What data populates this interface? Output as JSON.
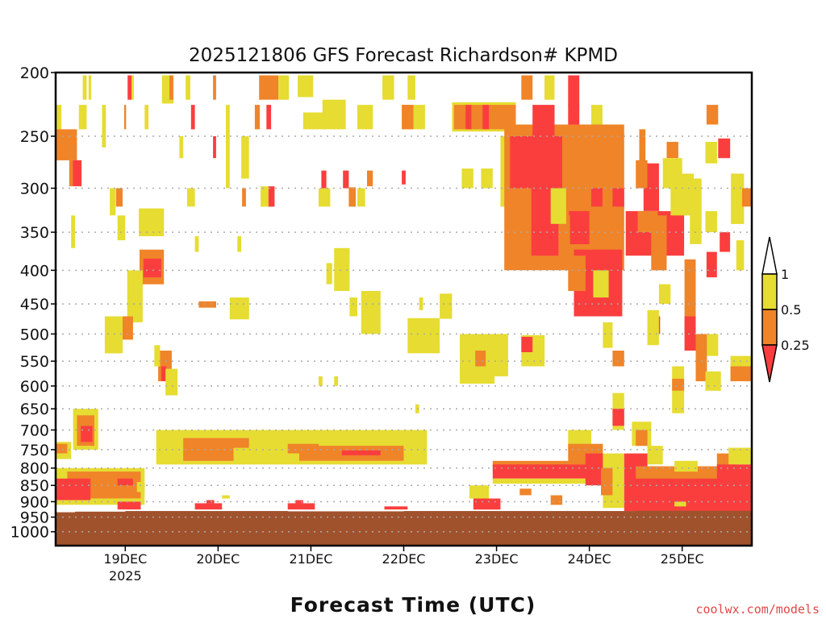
{
  "chart_data": {
    "type": "heatmap",
    "title": "2025121806 GFS Forecast Richardson# KPMD",
    "xlabel": "Forecast Time (UTC)",
    "ylabel": "",
    "credit": "coolwx.com/models",
    "x_units": "hours since 18DEC2025 06Z",
    "xlim": [
      0,
      180
    ],
    "ylim": [
      1050,
      200
    ],
    "y_scale": "log",
    "y_ticks": [
      200,
      250,
      300,
      350,
      400,
      450,
      500,
      550,
      600,
      650,
      700,
      750,
      800,
      850,
      900,
      950,
      1000
    ],
    "y_tick_labels": [
      "200",
      "250",
      "300",
      "350",
      "400",
      "450",
      "500",
      "550",
      "600",
      "650",
      "700",
      "750",
      "800",
      "850",
      "900",
      "950",
      "1000"
    ],
    "x_ticks": [
      {
        "hour": 18,
        "label": "19DEC",
        "sublabel": "2025"
      },
      {
        "hour": 42,
        "label": "20DEC"
      },
      {
        "hour": 66,
        "label": "21DEC"
      },
      {
        "hour": 90,
        "label": "22DEC"
      },
      {
        "hour": 114,
        "label": "23DEC"
      },
      {
        "hour": 138,
        "label": "24DEC"
      },
      {
        "hour": 162,
        "label": "25DEC"
      }
    ],
    "grid": "dotted horizontal at pressure ticks",
    "legend": {
      "placement": "right",
      "categories": [
        {
          "label": "< 0.25",
          "color": "#fa3e3e"
        },
        {
          "label": "0.25 - 0.5",
          "color": "#ef8429"
        },
        {
          "label": "0.5 - 1",
          "color": "#e6dc32"
        },
        {
          "label": "> 1",
          "color": "#ffffff"
        }
      ],
      "tick_labels": [
        "1",
        "0.5",
        "0.25"
      ]
    },
    "colors": {
      "red": "#fa3e3e",
      "orange": "#ef8429",
      "yellow": "#e6dc32",
      "ground": "#a0522d"
    },
    "surface_pressure": [
      [
        0,
        934
      ],
      [
        5,
        932
      ],
      [
        18,
        930
      ],
      [
        36,
        930
      ],
      [
        60,
        931
      ],
      [
        90,
        930
      ],
      [
        114,
        930
      ],
      [
        150,
        929
      ],
      [
        180,
        929
      ]
    ],
    "cells_format": "[hour_start, hour_end, p_top, p_bottom, category(0=red<0.25,1=orange,2=yellow)]",
    "cells": [
      [
        7,
        8,
        202,
        220,
        2
      ],
      [
        8.5,
        9.2,
        202,
        220,
        2
      ],
      [
        18.6,
        19.6,
        202,
        220,
        0
      ],
      [
        19.6,
        20.2,
        202,
        220,
        2
      ],
      [
        27.5,
        30.5,
        202,
        223,
        2
      ],
      [
        29.4,
        30.4,
        202,
        220,
        1
      ],
      [
        33.6,
        34.8,
        202,
        220,
        2
      ],
      [
        40.7,
        41.5,
        202,
        220,
        1
      ],
      [
        52.6,
        57.6,
        202,
        220,
        1
      ],
      [
        57.6,
        60.3,
        202,
        220,
        2
      ],
      [
        62.6,
        66.6,
        202,
        218,
        2
      ],
      [
        69,
        75,
        220,
        244,
        2
      ],
      [
        84.5,
        87.5,
        202,
        220,
        2
      ],
      [
        91,
        93,
        202,
        220,
        2
      ],
      [
        89.5,
        95.5,
        224,
        244,
        2
      ],
      [
        89.5,
        92.5,
        224,
        244,
        1
      ],
      [
        0,
        1.5,
        224,
        244,
        2
      ],
      [
        6,
        8,
        224,
        244,
        2
      ],
      [
        12,
        13,
        224,
        260,
        2
      ],
      [
        23,
        24,
        224,
        244,
        2
      ],
      [
        44,
        45,
        224,
        300,
        2
      ],
      [
        0,
        5.5,
        244,
        272,
        1
      ],
      [
        4.4,
        6.7,
        272,
        298,
        0
      ],
      [
        3.5,
        4.4,
        272,
        298,
        1
      ],
      [
        35,
        36,
        224,
        244,
        0
      ],
      [
        51.5,
        52.8,
        224,
        244,
        1
      ],
      [
        54.5,
        55.7,
        224,
        244,
        0
      ],
      [
        17.7,
        18.2,
        224,
        244,
        1
      ],
      [
        40.7,
        41.5,
        250,
        270,
        0
      ],
      [
        32,
        33,
        250,
        270,
        2
      ],
      [
        48,
        50,
        250,
        290,
        2
      ],
      [
        64,
        70,
        230,
        244,
        2
      ],
      [
        78,
        82,
        224,
        244,
        2
      ],
      [
        55,
        56.6,
        298,
        320,
        0
      ],
      [
        53,
        55,
        298,
        320,
        2
      ],
      [
        68.7,
        70,
        282,
        300,
        0
      ],
      [
        74.3,
        75.8,
        282,
        300,
        0
      ],
      [
        80.5,
        82,
        282,
        298,
        1
      ],
      [
        89.5,
        90.5,
        282,
        296,
        0
      ],
      [
        75.8,
        77.6,
        299,
        320,
        1
      ],
      [
        48.2,
        49.2,
        300,
        320,
        1
      ],
      [
        15.6,
        17.3,
        300,
        320,
        1
      ],
      [
        14,
        15.5,
        300,
        330,
        2
      ],
      [
        34,
        36,
        300,
        320,
        2
      ],
      [
        68,
        71,
        300,
        320,
        2
      ],
      [
        78,
        80,
        300,
        320,
        2
      ],
      [
        22,
        27.5,
        325,
        350,
        1
      ],
      [
        21.5,
        28,
        322,
        355,
        2
      ],
      [
        16,
        18,
        330,
        360,
        2
      ],
      [
        4,
        5,
        330,
        370,
        2
      ],
      [
        21.7,
        28,
        372,
        420,
        1
      ],
      [
        22.7,
        27.3,
        384,
        410,
        0
      ],
      [
        36,
        37,
        355,
        375,
        2
      ],
      [
        47,
        48,
        355,
        375,
        2
      ],
      [
        19,
        20.7,
        445,
        472,
        0
      ],
      [
        20.2,
        22,
        418,
        470,
        1
      ],
      [
        18.5,
        22.5,
        400,
        480,
        2
      ],
      [
        16.9,
        18,
        476,
        505,
        0
      ],
      [
        15.8,
        20,
        470,
        510,
        1
      ],
      [
        12.7,
        17.3,
        470,
        535,
        2
      ],
      [
        26.5,
        30,
        530,
        590,
        1
      ],
      [
        27.3,
        28.6,
        560,
        590,
        0
      ],
      [
        28.4,
        31.5,
        565,
        620,
        2
      ],
      [
        25.5,
        27,
        520,
        560,
        2
      ],
      [
        46,
        49.2,
        443,
        470,
        1
      ],
      [
        45,
        50,
        440,
        475,
        2
      ],
      [
        37,
        41.5,
        446,
        456,
        1
      ],
      [
        80.5,
        83.3,
        443,
        478,
        1
      ],
      [
        79,
        84,
        430,
        500,
        2
      ],
      [
        73,
        75,
        384,
        413,
        1
      ],
      [
        72,
        76,
        370,
        430,
        2
      ],
      [
        70,
        71.5,
        390,
        420,
        2
      ],
      [
        76,
        78,
        440,
        470,
        2
      ],
      [
        91,
        99.3,
        473,
        535,
        2
      ],
      [
        99.3,
        102.5,
        434,
        474,
        2
      ],
      [
        94,
        95,
        440,
        460,
        2
      ],
      [
        104.5,
        113.5,
        500,
        595,
        2
      ],
      [
        108.5,
        111.2,
        530,
        560,
        1
      ],
      [
        113.3,
        117,
        500,
        580,
        2
      ],
      [
        120.4,
        126.4,
        502,
        560,
        2
      ],
      [
        120.4,
        123.3,
        505,
        533,
        0
      ],
      [
        72,
        73,
        580,
        600,
        2
      ],
      [
        68,
        69,
        580,
        600,
        2
      ],
      [
        93,
        94,
        640,
        660,
        2
      ],
      [
        120.4,
        123.3,
        202,
        220,
        1
      ],
      [
        126.4,
        129,
        202,
        220,
        2
      ],
      [
        132.5,
        135.4,
        202,
        225,
        0
      ],
      [
        102.5,
        119,
        222,
        246,
        2
      ],
      [
        103,
        119,
        224,
        244,
        1
      ],
      [
        110.4,
        112,
        224,
        244,
        0
      ],
      [
        106,
        107.5,
        224,
        244,
        0
      ],
      [
        138.5,
        141.4,
        224,
        244,
        2
      ],
      [
        168.3,
        171.3,
        224,
        240,
        1
      ],
      [
        105,
        108,
        280,
        300,
        2
      ],
      [
        110,
        113,
        280,
        300,
        2
      ],
      [
        115,
        117,
        250,
        320,
        2
      ],
      [
        118,
        120,
        300,
        350,
        2
      ],
      [
        116,
        147,
        240,
        400,
        1
      ],
      [
        117.5,
        131,
        250,
        300,
        0
      ],
      [
        123.3,
        129,
        224,
        250,
        0
      ],
      [
        132.5,
        135.4,
        224,
        240,
        0
      ],
      [
        123,
        132,
        300,
        380,
        0
      ],
      [
        138.5,
        141.4,
        300,
        320,
        0
      ],
      [
        144,
        147,
        300,
        320,
        0
      ],
      [
        132.7,
        138,
        325,
        365,
        0
      ],
      [
        130,
        133,
        330,
        390,
        1
      ],
      [
        128,
        132,
        300,
        340,
        2
      ],
      [
        147.4,
        162.5,
        325,
        380,
        0
      ],
      [
        150.5,
        155.7,
        325,
        350,
        1
      ],
      [
        152,
        156,
        300,
        325,
        0
      ],
      [
        150.9,
        152.5,
        244,
        300,
        1
      ],
      [
        158,
        161,
        255,
        270,
        1
      ],
      [
        157,
        162,
        270,
        300,
        2
      ],
      [
        150,
        153,
        272,
        300,
        1
      ],
      [
        153,
        156,
        275,
        300,
        0
      ],
      [
        134,
        146.5,
        372,
        470,
        0
      ],
      [
        132.5,
        137,
        380,
        430,
        1
      ],
      [
        139,
        143,
        400,
        440,
        2
      ],
      [
        162.6,
        165.5,
        385,
        500,
        1
      ],
      [
        162.6,
        165.5,
        470,
        530,
        0
      ],
      [
        168.3,
        171,
        375,
        410,
        0
      ],
      [
        171.3,
        174.4,
        252,
        270,
        0
      ],
      [
        168,
        171,
        255,
        275,
        2
      ],
      [
        171.7,
        174.4,
        350,
        375,
        0
      ],
      [
        159,
        165,
        285,
        330,
        2
      ],
      [
        174.6,
        178,
        285,
        340,
        2
      ],
      [
        164,
        167,
        290,
        365,
        2
      ],
      [
        177.5,
        180,
        300,
        320,
        1
      ],
      [
        154,
        158,
        330,
        400,
        1
      ],
      [
        156,
        159,
        420,
        450,
        2
      ],
      [
        168,
        171,
        325,
        350,
        2
      ],
      [
        176,
        178,
        360,
        400,
        2
      ],
      [
        174.5,
        180,
        540,
        590,
        2
      ],
      [
        174.5,
        180,
        560,
        590,
        1
      ],
      [
        159.4,
        162.5,
        560,
        660,
        2
      ],
      [
        159.4,
        162.5,
        585,
        610,
        1
      ],
      [
        165.5,
        168.4,
        500,
        590,
        1
      ],
      [
        168.4,
        171.3,
        500,
        540,
        2
      ],
      [
        168,
        172,
        570,
        610,
        2
      ],
      [
        144,
        147,
        530,
        560,
        1
      ],
      [
        141.5,
        144,
        480,
        525,
        2
      ],
      [
        153.6,
        156.3,
        470,
        500,
        0
      ],
      [
        153,
        156,
        460,
        520,
        2
      ],
      [
        144,
        147,
        615,
        700,
        2
      ],
      [
        144,
        147,
        650,
        690,
        0
      ],
      [
        0,
        23,
        800,
        910,
        2
      ],
      [
        3,
        22,
        810,
        890,
        1
      ],
      [
        0,
        9,
        830,
        895,
        0
      ],
      [
        16,
        20,
        830,
        850,
        0
      ],
      [
        21,
        23,
        840,
        870,
        2
      ],
      [
        4.5,
        11,
        650,
        750,
        2
      ],
      [
        5.5,
        10,
        665,
        740,
        1
      ],
      [
        6.5,
        9.5,
        690,
        730,
        0
      ],
      [
        0,
        4,
        730,
        775,
        2
      ],
      [
        0,
        3,
        735,
        760,
        1
      ],
      [
        26,
        96,
        700,
        790,
        2
      ],
      [
        33,
        46,
        720,
        780,
        1
      ],
      [
        46,
        50,
        720,
        745,
        1
      ],
      [
        60,
        68,
        735,
        760,
        1
      ],
      [
        63,
        90,
        740,
        780,
        1
      ],
      [
        74,
        84,
        752,
        765,
        0
      ],
      [
        16,
        22,
        900,
        925,
        0
      ],
      [
        36,
        43,
        905,
        925,
        0
      ],
      [
        39,
        41,
        895,
        905,
        0
      ],
      [
        60,
        67,
        905,
        925,
        0
      ],
      [
        62,
        64,
        895,
        905,
        0
      ],
      [
        85,
        91,
        915,
        925,
        0
      ],
      [
        108,
        115,
        890,
        925,
        0
      ],
      [
        107,
        112,
        850,
        890,
        2
      ],
      [
        43,
        45,
        880,
        890,
        2
      ],
      [
        113,
        146,
        780,
        800,
        1
      ],
      [
        113,
        146,
        790,
        830,
        0
      ],
      [
        113,
        146,
        830,
        845,
        2
      ],
      [
        132.5,
        138.5,
        700,
        750,
        2
      ],
      [
        132.5,
        141.5,
        735,
        790,
        1
      ],
      [
        137,
        141.5,
        760,
        850,
        0
      ],
      [
        141.5,
        147,
        760,
        920,
        2
      ],
      [
        141,
        144,
        800,
        880,
        1
      ],
      [
        147,
        153,
        760,
        930,
        0
      ],
      [
        149,
        154,
        680,
        740,
        2
      ],
      [
        150,
        153,
        700,
        740,
        1
      ],
      [
        153,
        157,
        740,
        790,
        2
      ],
      [
        150,
        180,
        820,
        930,
        0
      ],
      [
        150,
        180,
        795,
        830,
        1
      ],
      [
        160,
        166,
        780,
        810,
        2
      ],
      [
        171,
        176,
        760,
        810,
        1
      ],
      [
        174,
        180,
        745,
        790,
        2
      ],
      [
        171,
        180,
        790,
        850,
        0
      ],
      [
        120,
        123,
        860,
        880,
        1
      ],
      [
        128,
        131,
        880,
        910,
        1
      ],
      [
        160,
        163,
        900,
        915,
        2
      ]
    ]
  }
}
